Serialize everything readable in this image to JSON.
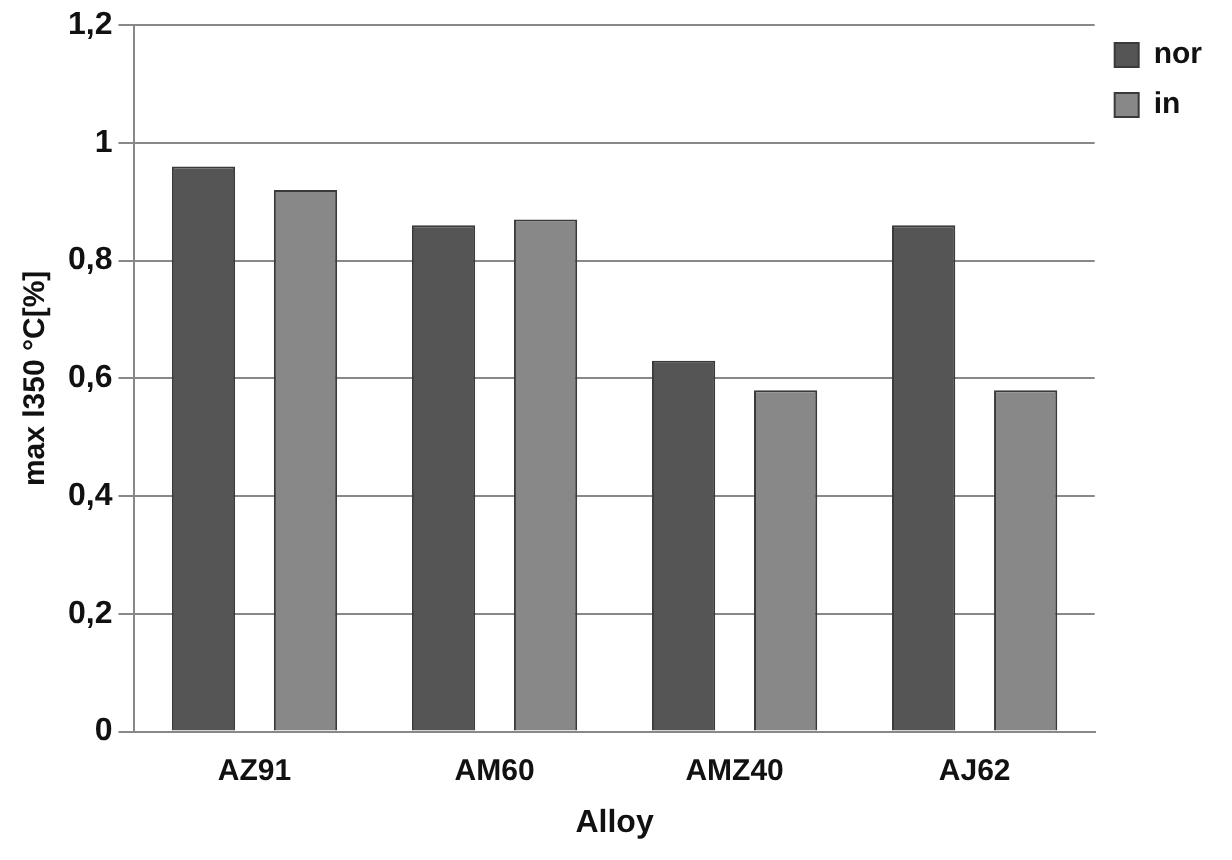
{
  "chart_data": {
    "type": "bar",
    "xlabel": "Alloy",
    "ylabel": "max l350 °C[%]",
    "categories": [
      "AZ91",
      "AM60",
      "AMZ40",
      "AJ62"
    ],
    "series": [
      {
        "name": "nor",
        "color": "#555555",
        "values": [
          0.96,
          0.86,
          0.63,
          0.86
        ]
      },
      {
        "name": "in",
        "color": "#888888",
        "values": [
          0.92,
          0.87,
          0.58,
          0.58
        ]
      }
    ],
    "ylim": [
      0,
      1.2
    ],
    "yticks": [
      {
        "value": 0,
        "label": "0"
      },
      {
        "value": 0.2,
        "label": "0,2"
      },
      {
        "value": 0.4,
        "label": "0,4"
      },
      {
        "value": 0.6,
        "label": "0,6"
      },
      {
        "value": 0.8,
        "label": "0,8"
      },
      {
        "value": 1,
        "label": "1"
      },
      {
        "value": 1.2,
        "label": "1,2"
      }
    ],
    "grid": "y",
    "legend": "top right"
  }
}
